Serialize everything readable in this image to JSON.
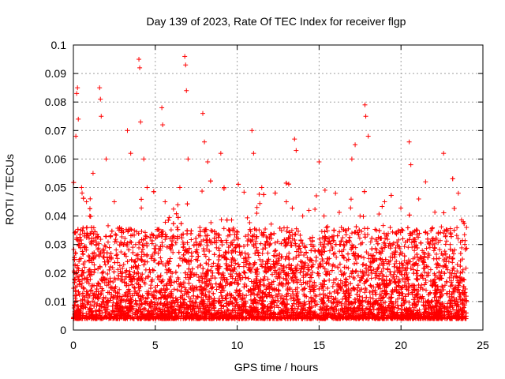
{
  "chart_data": {
    "type": "scatter",
    "title": "Day 139 of 2023, Rate Of TEC Index for receiver flgp",
    "xlabel": "GPS time / hours",
    "ylabel": "ROTI / TECUs",
    "xlim": [
      0,
      25
    ],
    "ylim": [
      0,
      0.1
    ],
    "xticks": [
      0,
      5,
      10,
      15,
      20,
      25
    ],
    "yticks": [
      0,
      0.01,
      0.02,
      0.03,
      0.04,
      0.05,
      0.06,
      0.07,
      0.08,
      0.09,
      0.1
    ],
    "xtick_labels": [
      "0",
      "5",
      "10",
      "15",
      "20",
      "25"
    ],
    "ytick_labels": [
      "0",
      "0.01",
      "0.02",
      "0.03",
      "0.04",
      "0.05",
      "0.06",
      "0.07",
      "0.08",
      "0.09",
      "0.1"
    ],
    "grid": true,
    "marker": "+",
    "color": "#ff0000",
    "series": [
      {
        "name": "ROTI",
        "description_of_range": "x spans 0 to 24 h; bulk of values between 0.005 and 0.03 TECU/min with frequent spikes",
        "x": [
          0.1,
          0.15,
          0.2,
          0.25,
          0.3,
          0.3,
          0.5,
          0.6,
          0.8,
          1.0,
          1.2,
          1.4,
          1.6,
          1.65,
          1.7,
          2.0,
          2.5,
          3.0,
          3.3,
          3.5,
          3.8,
          4.0,
          4.05,
          4.1,
          4.3,
          4.5,
          5.0,
          5.4,
          5.45,
          5.6,
          6.0,
          6.5,
          6.8,
          6.85,
          6.9,
          7.0,
          7.5,
          7.9,
          8.0,
          8.2,
          8.5,
          9.0,
          9.2,
          9.5,
          10.0,
          10.5,
          10.9,
          11.0,
          11.5,
          12.0,
          12.5,
          13.0,
          13.5,
          13.6,
          14.0,
          14.5,
          15.0,
          15.3,
          15.5,
          16.0,
          16.5,
          17.0,
          17.2,
          17.5,
          17.8,
          17.85,
          18.0,
          18.5,
          19.0,
          19.5,
          20.0,
          20.5,
          20.6,
          21.0,
          21.5,
          22.0,
          22.6,
          23.0,
          23.5,
          23.8,
          24.0
        ],
        "y": [
          0.012,
          0.068,
          0.083,
          0.085,
          0.074,
          0.03,
          0.05,
          0.02,
          0.045,
          0.04,
          0.055,
          0.03,
          0.085,
          0.081,
          0.075,
          0.06,
          0.045,
          0.02,
          0.07,
          0.062,
          0.03,
          0.095,
          0.092,
          0.073,
          0.06,
          0.05,
          0.015,
          0.078,
          0.072,
          0.045,
          0.03,
          0.05,
          0.096,
          0.093,
          0.084,
          0.06,
          0.03,
          0.076,
          0.066,
          0.059,
          0.02,
          0.062,
          0.05,
          0.035,
          0.03,
          0.025,
          0.07,
          0.062,
          0.05,
          0.03,
          0.025,
          0.045,
          0.067,
          0.063,
          0.04,
          0.03,
          0.059,
          0.04,
          0.025,
          0.048,
          0.03,
          0.06,
          0.065,
          0.04,
          0.079,
          0.075,
          0.068,
          0.035,
          0.045,
          0.03,
          0.02,
          0.066,
          0.058,
          0.035,
          0.052,
          0.025,
          0.062,
          0.03,
          0.048,
          0.038,
          0.036
        ]
      }
    ]
  }
}
